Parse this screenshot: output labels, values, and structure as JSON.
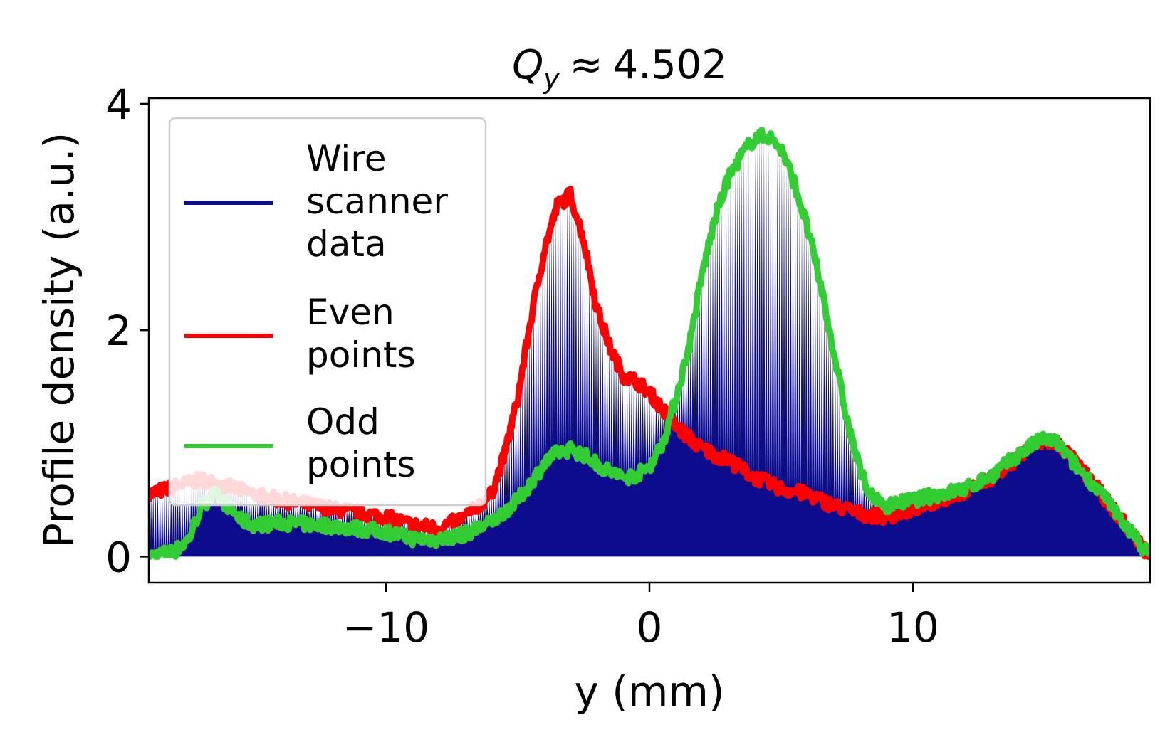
{
  "chart_data": {
    "type": "line",
    "title": {
      "symbol": "Q",
      "subscript": "y",
      "relation": "≈",
      "value": "4.502"
    },
    "xlabel": "y (mm)",
    "ylabel": "Profile density (a.u.)",
    "xlim": [
      -19,
      19
    ],
    "ylim": [
      -0.23,
      4.05
    ],
    "xticks": [
      {
        "value": -10,
        "label": "−10"
      },
      {
        "value": 0,
        "label": "0"
      },
      {
        "value": 10,
        "label": "10"
      }
    ],
    "yticks": [
      {
        "value": 0,
        "label": "0"
      },
      {
        "value": 2,
        "label": "2"
      },
      {
        "value": 4,
        "label": "4"
      }
    ],
    "grid": false,
    "legend_position": "upper-left",
    "series": [
      {
        "name": "Wire scanner data",
        "legend_lines": [
          "Wire",
          "scanner",
          "data"
        ],
        "color": "#0c0c8c",
        "style": "filled-dense-oscillation",
        "note": "alternates between the even-point and odd-point envelopes",
        "x": [
          -19,
          -17,
          -16,
          -15,
          -12,
          -9,
          -6,
          -5,
          -4,
          -3,
          -2,
          -1,
          0,
          0.5,
          1,
          2,
          3,
          4,
          5,
          6,
          7,
          8,
          8.5,
          10,
          12,
          14,
          15,
          16,
          18,
          19
        ],
        "values": [
          0.35,
          0.3,
          0.45,
          0.4,
          0.3,
          0.18,
          0.35,
          0.6,
          1.6,
          2.7,
          2.3,
          1.4,
          1.15,
          1.0,
          1.1,
          2.6,
          3.4,
          3.6,
          3.5,
          2.8,
          1.8,
          0.9,
          0.5,
          0.5,
          0.6,
          0.85,
          1.0,
          0.95,
          0.45,
          0.0
        ]
      },
      {
        "name": "Even points",
        "legend_lines": [
          "Even",
          "points"
        ],
        "color": "#ff0000",
        "x": [
          -19,
          -18,
          -17,
          -16,
          -15,
          -14,
          -12,
          -10,
          -9,
          -8,
          -7,
          -6,
          -5.5,
          -5,
          -4.5,
          -4,
          -3.5,
          -3,
          -2.5,
          -2,
          -1.5,
          -1,
          -0.5,
          0,
          0.5,
          1,
          2,
          3,
          4,
          5,
          6,
          7,
          8,
          9,
          10,
          11,
          12,
          13,
          14,
          14.5,
          15,
          15.5,
          16,
          17,
          18,
          19
        ],
        "values": [
          0.55,
          0.62,
          0.68,
          0.62,
          0.55,
          0.5,
          0.42,
          0.35,
          0.28,
          0.25,
          0.35,
          0.55,
          0.9,
          1.4,
          2.1,
          2.7,
          3.1,
          3.2,
          2.8,
          2.2,
          1.85,
          1.6,
          1.55,
          1.45,
          1.3,
          1.15,
          0.95,
          0.85,
          0.7,
          0.6,
          0.55,
          0.45,
          0.38,
          0.35,
          0.42,
          0.5,
          0.58,
          0.7,
          0.88,
          0.98,
          1.02,
          1.0,
          0.88,
          0.6,
          0.3,
          0.0
        ]
      },
      {
        "name": "Odd points",
        "legend_lines": [
          "Odd",
          "points"
        ],
        "color": "#32cd32",
        "x": [
          -19,
          -18,
          -17.5,
          -17,
          -16.5,
          -16,
          -15.5,
          -15,
          -14,
          -12,
          -10,
          -9,
          -8,
          -7,
          -6,
          -5,
          -4.5,
          -4,
          -3.5,
          -3,
          -2.5,
          -2,
          -1.5,
          -1,
          -0.5,
          0,
          0.5,
          1,
          1.5,
          2,
          2.5,
          3,
          3.5,
          4,
          4.5,
          5,
          5.5,
          6,
          6.5,
          7,
          7.5,
          8,
          8.5,
          9,
          10,
          11,
          12,
          13,
          14,
          14.5,
          15,
          15.5,
          16,
          17,
          18,
          19
        ],
        "values": [
          0.0,
          0.05,
          0.15,
          0.45,
          0.55,
          0.45,
          0.32,
          0.28,
          0.3,
          0.27,
          0.22,
          0.16,
          0.15,
          0.2,
          0.3,
          0.5,
          0.65,
          0.82,
          0.92,
          0.95,
          0.9,
          0.82,
          0.75,
          0.7,
          0.72,
          0.8,
          1.0,
          1.4,
          1.85,
          2.5,
          3.0,
          3.35,
          3.55,
          3.7,
          3.72,
          3.6,
          3.3,
          2.9,
          2.4,
          1.8,
          1.2,
          0.75,
          0.5,
          0.45,
          0.5,
          0.55,
          0.6,
          0.72,
          0.9,
          0.98,
          1.05,
          1.0,
          0.85,
          0.6,
          0.3,
          0.0
        ]
      }
    ]
  }
}
